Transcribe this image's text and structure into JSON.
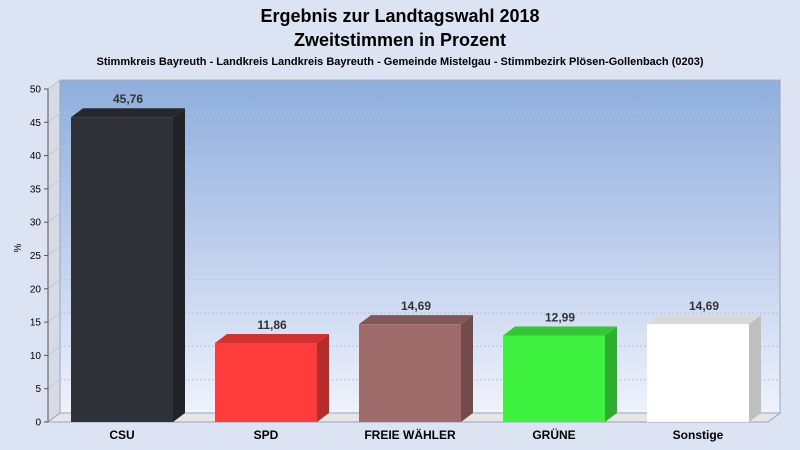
{
  "chart_data": {
    "type": "bar",
    "title": "Ergebnis zur Landtagswahl 2018",
    "subtitle": "Zweitstimmen in Prozent",
    "caption": "Stimmkreis Bayreuth - Landkreis Landkreis Bayreuth - Gemeinde Mistelgau - Stimmbezirk Plösen-Gollenbach (0203)",
    "ylabel": "%",
    "ylim": [
      0,
      50
    ],
    "yticks": [
      0,
      5,
      10,
      15,
      20,
      25,
      30,
      35,
      40,
      45,
      50
    ],
    "grid": true,
    "categories": [
      "CSU",
      "SPD",
      "FREIE WÄHLER",
      "GRÜNE",
      "Sonstige"
    ],
    "values": [
      45.76,
      11.86,
      14.69,
      12.99,
      14.69
    ],
    "value_labels": [
      "45,76",
      "11,86",
      "14,69",
      "12,99",
      "14,69"
    ],
    "colors": [
      "#2e3138",
      "#ff3c3c",
      "#9e6a6a",
      "#3ff23f",
      "#ffffff"
    ]
  }
}
